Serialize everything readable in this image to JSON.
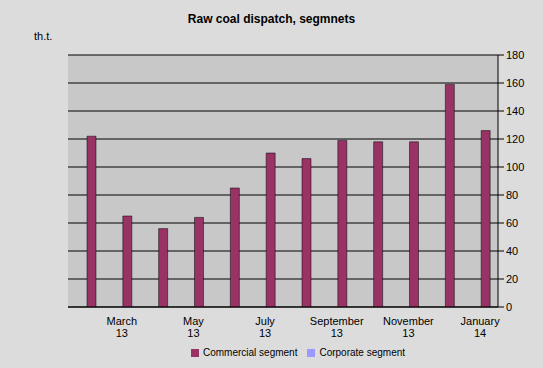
{
  "chart_data": {
    "type": "bar",
    "title": "Raw coal dispatch, segmnets",
    "y_label": "th.t.",
    "categories": [
      null,
      "March 13",
      null,
      "May 13",
      null,
      "July 13",
      null,
      "September 13",
      null,
      "November 13",
      null,
      "January 14"
    ],
    "series": [
      {
        "name": "Corporate segment",
        "color": "#9999ff",
        "values": [
          0,
          0,
          0,
          0,
          0,
          0,
          0,
          0,
          0,
          0,
          0,
          0
        ]
      },
      {
        "name": "Commercial segment",
        "color": "#993366",
        "values": [
          122,
          65,
          56,
          64,
          85,
          110,
          106,
          119,
          118,
          118,
          159,
          126
        ]
      }
    ],
    "ylim": [
      0,
      180
    ],
    "yticks": [
      0,
      20,
      40,
      60,
      80,
      100,
      120,
      140,
      160,
      180
    ],
    "grid": true,
    "legend": "bottom"
  }
}
